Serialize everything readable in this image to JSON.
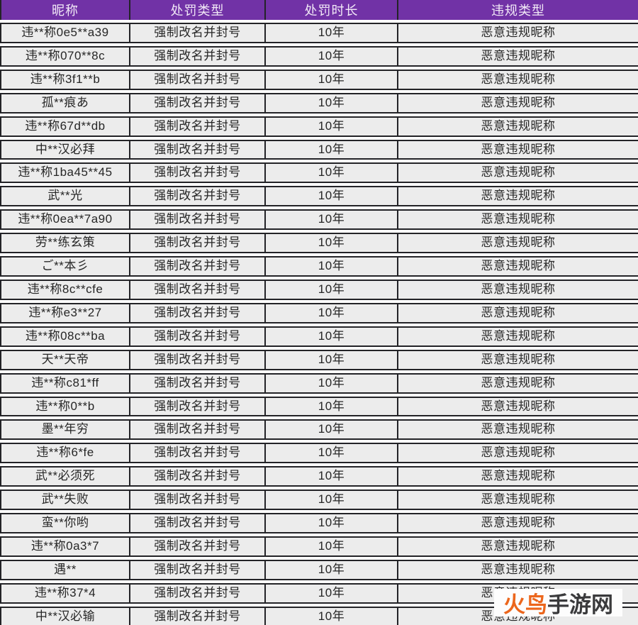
{
  "table": {
    "headers": [
      "昵称",
      "处罚类型",
      "处罚时长",
      "违规类型"
    ],
    "rows": [
      {
        "nickname": "违**称0e5**a39",
        "punishment_type": "强制改名并封号",
        "punishment_duration": "10年",
        "violation_type": "恶意违规昵称"
      },
      {
        "nickname": "违**称070**8c",
        "punishment_type": "强制改名并封号",
        "punishment_duration": "10年",
        "violation_type": "恶意违规昵称"
      },
      {
        "nickname": "违**称3f1**b",
        "punishment_type": "强制改名并封号",
        "punishment_duration": "10年",
        "violation_type": "恶意违规昵称"
      },
      {
        "nickname": "孤**痕あ",
        "punishment_type": "强制改名并封号",
        "punishment_duration": "10年",
        "violation_type": "恶意违规昵称"
      },
      {
        "nickname": "违**称67d**db",
        "punishment_type": "强制改名并封号",
        "punishment_duration": "10年",
        "violation_type": "恶意违规昵称"
      },
      {
        "nickname": "中**汉必拜",
        "punishment_type": "强制改名并封号",
        "punishment_duration": "10年",
        "violation_type": "恶意违规昵称"
      },
      {
        "nickname": "违**称1ba45**45",
        "punishment_type": "强制改名并封号",
        "punishment_duration": "10年",
        "violation_type": "恶意违规昵称"
      },
      {
        "nickname": "武**光",
        "punishment_type": "强制改名并封号",
        "punishment_duration": "10年",
        "violation_type": "恶意违规昵称"
      },
      {
        "nickname": "违**称0ea**7a90",
        "punishment_type": "强制改名并封号",
        "punishment_duration": "10年",
        "violation_type": "恶意违规昵称"
      },
      {
        "nickname": "劳**练玄策",
        "punishment_type": "强制改名并封号",
        "punishment_duration": "10年",
        "violation_type": "恶意违规昵称"
      },
      {
        "nickname": "ご**本彡",
        "punishment_type": "强制改名并封号",
        "punishment_duration": "10年",
        "violation_type": "恶意违规昵称"
      },
      {
        "nickname": "违**称8c**cfe",
        "punishment_type": "强制改名并封号",
        "punishment_duration": "10年",
        "violation_type": "恶意违规昵称"
      },
      {
        "nickname": "违**称e3**27",
        "punishment_type": "强制改名并封号",
        "punishment_duration": "10年",
        "violation_type": "恶意违规昵称"
      },
      {
        "nickname": "违**称08c**ba",
        "punishment_type": "强制改名并封号",
        "punishment_duration": "10年",
        "violation_type": "恶意违规昵称"
      },
      {
        "nickname": "天**天帝",
        "punishment_type": "强制改名并封号",
        "punishment_duration": "10年",
        "violation_type": "恶意违规昵称"
      },
      {
        "nickname": "违**称c81*ff",
        "punishment_type": "强制改名并封号",
        "punishment_duration": "10年",
        "violation_type": "恶意违规昵称"
      },
      {
        "nickname": "违**称0**b",
        "punishment_type": "强制改名并封号",
        "punishment_duration": "10年",
        "violation_type": "恶意违规昵称"
      },
      {
        "nickname": "墨**年穷",
        "punishment_type": "强制改名并封号",
        "punishment_duration": "10年",
        "violation_type": "恶意违规昵称"
      },
      {
        "nickname": "违**称6*fe",
        "punishment_type": "强制改名并封号",
        "punishment_duration": "10年",
        "violation_type": "恶意违规昵称"
      },
      {
        "nickname": "武**必须死",
        "punishment_type": "强制改名并封号",
        "punishment_duration": "10年",
        "violation_type": "恶意违规昵称"
      },
      {
        "nickname": "武**失败",
        "punishment_type": "强制改名并封号",
        "punishment_duration": "10年",
        "violation_type": "恶意违规昵称"
      },
      {
        "nickname": "蛮**你哟",
        "punishment_type": "强制改名并封号",
        "punishment_duration": "10年",
        "violation_type": "恶意违规昵称"
      },
      {
        "nickname": "违**称0a3*7",
        "punishment_type": "强制改名并封号",
        "punishment_duration": "10年",
        "violation_type": "恶意违规昵称"
      },
      {
        "nickname": "遇**",
        "punishment_type": "强制改名并封号",
        "punishment_duration": "10年",
        "violation_type": "恶意违规昵称"
      },
      {
        "nickname": "违**称37*4",
        "punishment_type": "强制改名并封号",
        "punishment_duration": "10年",
        "violation_type": "恶意违规昵称"
      },
      {
        "nickname": "中**汉必输",
        "punishment_type": "强制改名并封号",
        "punishment_duration": "10年",
        "violation_type": "恶意违规昵称"
      }
    ]
  },
  "watermark": {
    "brand": "火鸟",
    "suffix": "手游网"
  },
  "colors": {
    "header_bg": "#7132a6",
    "header_text": "#f2e9f7",
    "row_bg": "#ececec",
    "border": "#232327",
    "watermark_brand": "#ec661c",
    "watermark_suffix": "#3a3a3c"
  }
}
